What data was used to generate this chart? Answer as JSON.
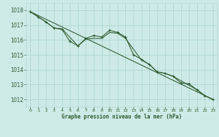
{
  "title": "Graphe pression niveau de la mer (hPa)",
  "background_color": "#ceeae7",
  "grid_color": "#b0d8d4",
  "line_color": "#2d5a2d",
  "xlim": [
    -0.5,
    23.5
  ],
  "ylim": [
    1011.5,
    1018.5
  ],
  "yticks": [
    1012,
    1013,
    1014,
    1015,
    1016,
    1017,
    1018
  ],
  "xticks": [
    0,
    1,
    2,
    3,
    4,
    5,
    6,
    7,
    8,
    9,
    10,
    11,
    12,
    13,
    14,
    15,
    16,
    17,
    18,
    19,
    20,
    21,
    22,
    23
  ],
  "series1_x": [
    0,
    1,
    2,
    3,
    4,
    5,
    6,
    7,
    8,
    9,
    10,
    11,
    12,
    13,
    14,
    15,
    16,
    17,
    18,
    19,
    20,
    21,
    22,
    23
  ],
  "series1_y": [
    1017.9,
    1017.55,
    1017.2,
    1016.8,
    1016.7,
    1015.9,
    1015.6,
    1016.1,
    1016.3,
    1016.2,
    1016.65,
    1016.5,
    1016.2,
    1015.0,
    1014.7,
    1014.35,
    1013.85,
    1013.75,
    1013.55,
    1013.1,
    1013.05,
    1012.65,
    1012.25,
    1012.0
  ],
  "series2_x": [
    0,
    2,
    3,
    4,
    6,
    7,
    8,
    9,
    10,
    11,
    12,
    14,
    15,
    16,
    17,
    18,
    21,
    22,
    23
  ],
  "series2_y": [
    1017.9,
    1017.2,
    1016.8,
    1016.75,
    1015.6,
    1016.05,
    1016.1,
    1016.1,
    1016.5,
    1016.45,
    1016.1,
    1014.65,
    1014.35,
    1013.85,
    1013.75,
    1013.55,
    1012.65,
    1012.25,
    1012.0
  ],
  "series3_x": [
    0,
    23
  ],
  "series3_y": [
    1017.9,
    1012.0
  ]
}
